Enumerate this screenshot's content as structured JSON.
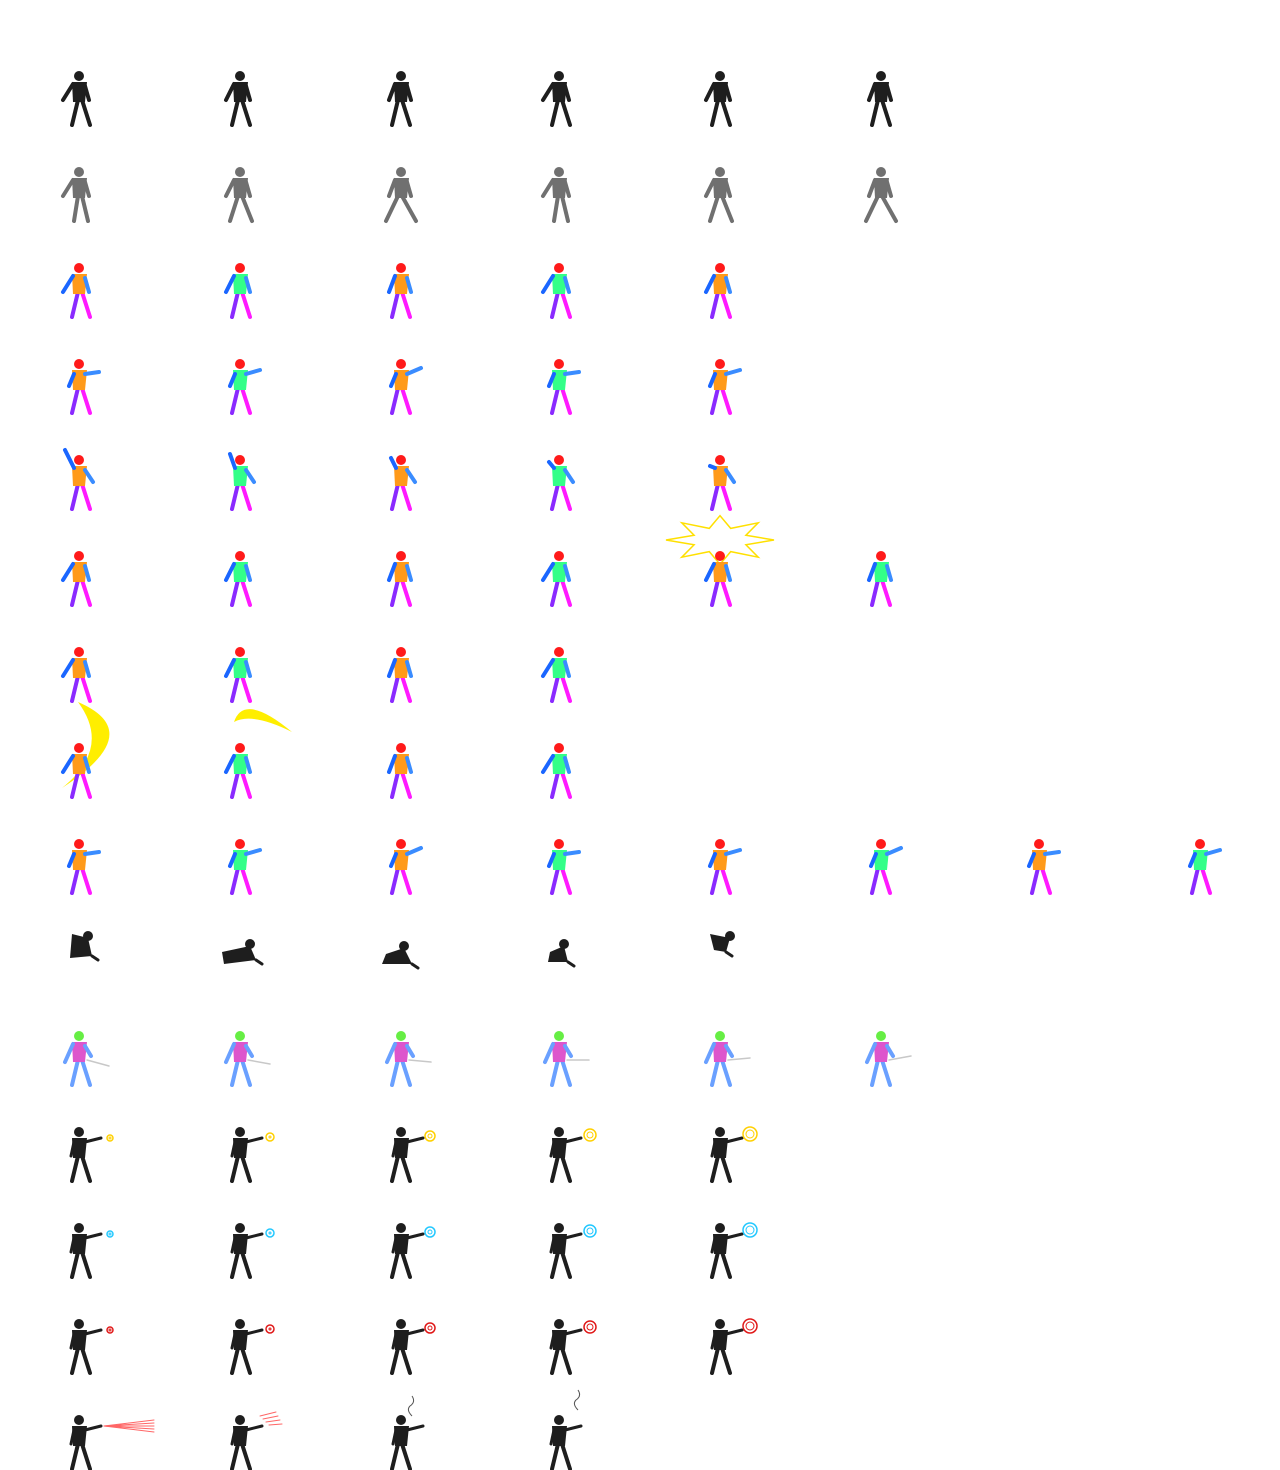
{
  "sprite_sheet": {
    "background": "#ffffff",
    "palette": {
      "silhouette_dark": "#1e1e1e",
      "silhouette_gray": "#707070",
      "head": "#ff1a1a",
      "arm_back": "#1a66ff",
      "arm_front": "#3a8cff",
      "torso": "#33ff88",
      "torso_alt": "#ff9a1a",
      "legs_front": "#ff1aff",
      "legs_back": "#8a2aff",
      "spark_yellow": "#ffe000",
      "slash_yellow": "#ffee00",
      "orb_yellow": "#ffd000",
      "orb_cyan": "#22c8ff",
      "orb_red": "#e01818",
      "ray_pink": "#ff6666",
      "alt_head": "#66ee44",
      "alt_body": "#6aa0ff",
      "alt_accent": "#dd55cc",
      "blade_gray": "#c8c8c8"
    },
    "rows": [
      {
        "id": "idle-dark",
        "style": "dark",
        "frames": 6,
        "pose": "idle"
      },
      {
        "id": "walk-gray",
        "style": "gray",
        "frames": 6,
        "pose": "walk"
      },
      {
        "id": "color-stance-a",
        "style": "color",
        "frames": 5,
        "pose": "stance"
      },
      {
        "id": "color-punch",
        "style": "color",
        "frames": 5,
        "pose": "punch"
      },
      {
        "id": "color-raise",
        "style": "color",
        "frames": 5,
        "pose": "raise"
      },
      {
        "id": "color-spark",
        "style": "color",
        "frames": 6,
        "pose": "stance",
        "effect": "spark",
        "effect_frame": 5
      },
      {
        "id": "color-stance-b",
        "style": "color",
        "frames": 4,
        "pose": "stance"
      },
      {
        "id": "color-slash",
        "style": "color",
        "frames": 4,
        "pose": "stance",
        "effect": "slash",
        "effect_frame": 1
      },
      {
        "id": "color-combo",
        "style": "color",
        "frames": 8,
        "pose": "punch"
      },
      {
        "id": "fall-dark",
        "style": "dark",
        "frames": 5,
        "pose": "fall"
      },
      {
        "id": "blade-alt",
        "style": "alt",
        "frames": 6,
        "pose": "blade"
      },
      {
        "id": "cast-yellow",
        "style": "dark",
        "frames": 5,
        "pose": "cast",
        "effect": "orb",
        "orb_color": "orb_yellow"
      },
      {
        "id": "cast-cyan",
        "style": "dark",
        "frames": 5,
        "pose": "cast",
        "effect": "orb",
        "orb_color": "orb_cyan"
      },
      {
        "id": "cast-red",
        "style": "dark",
        "frames": 5,
        "pose": "cast",
        "effect": "orb",
        "orb_color": "orb_red"
      },
      {
        "id": "cast-ray",
        "style": "dark",
        "frames": 4,
        "pose": "cast",
        "effect": "ray"
      }
    ]
  }
}
